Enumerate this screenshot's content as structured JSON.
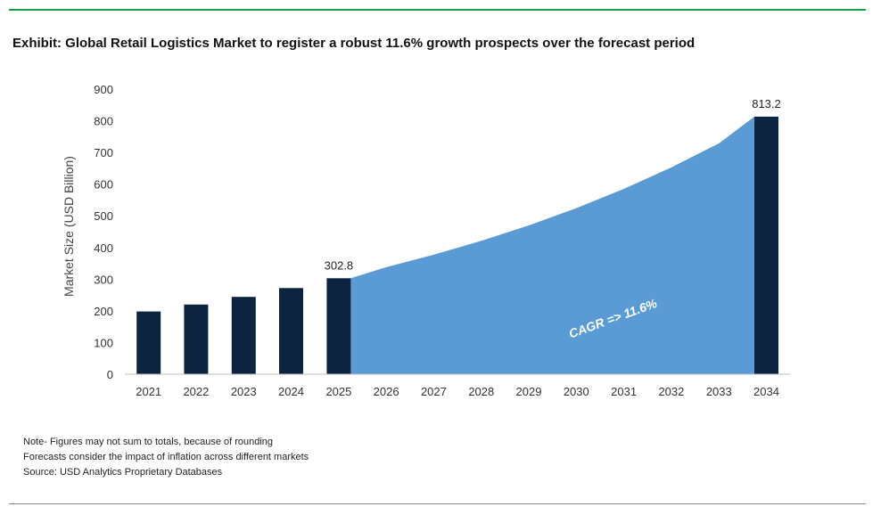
{
  "title": "Exhibit: Global Retail Logistics Market to register a robust 11.6% growth prospects over the forecast period",
  "notes": [
    "Note- Figures may not sum to totals, because of rounding",
    "Forecasts consider the impact of inflation across different markets",
    "Source: USD Analytics Proprietary Databases"
  ],
  "colors": {
    "bar": "#0d2440",
    "area": "#5b9bd5",
    "cagr_text": "#ffffff",
    "top_rule": "#1a9e4a"
  },
  "chart_data": {
    "type": "bar",
    "ylabel": "Market Size (USD Billion)",
    "ylim": [
      0,
      900
    ],
    "yticks": [
      0,
      100,
      200,
      300,
      400,
      500,
      600,
      700,
      800,
      900
    ],
    "categories": [
      "2021",
      "2022",
      "2023",
      "2024",
      "2025",
      "2026",
      "2027",
      "2028",
      "2029",
      "2030",
      "2031",
      "2032",
      "2033",
      "2034"
    ],
    "bars": [
      {
        "category": "2021",
        "value": 198
      },
      {
        "category": "2022",
        "value": 220
      },
      {
        "category": "2023",
        "value": 244
      },
      {
        "category": "2024",
        "value": 272
      },
      {
        "category": "2025",
        "value": 302.8,
        "label": "302.8"
      },
      {
        "category": "2034",
        "value": 813.2,
        "label": "813.2"
      }
    ],
    "area": {
      "categories": [
        "2025",
        "2026",
        "2027",
        "2028",
        "2029",
        "2030",
        "2031",
        "2032",
        "2033",
        "2034"
      ],
      "values": [
        302.8,
        337.9,
        377.1,
        420.9,
        469.7,
        524.2,
        585.0,
        652.8,
        728.6,
        813.2
      ]
    },
    "annotation": "CAGR => 11.6%",
    "grid": false,
    "legend": "none"
  }
}
